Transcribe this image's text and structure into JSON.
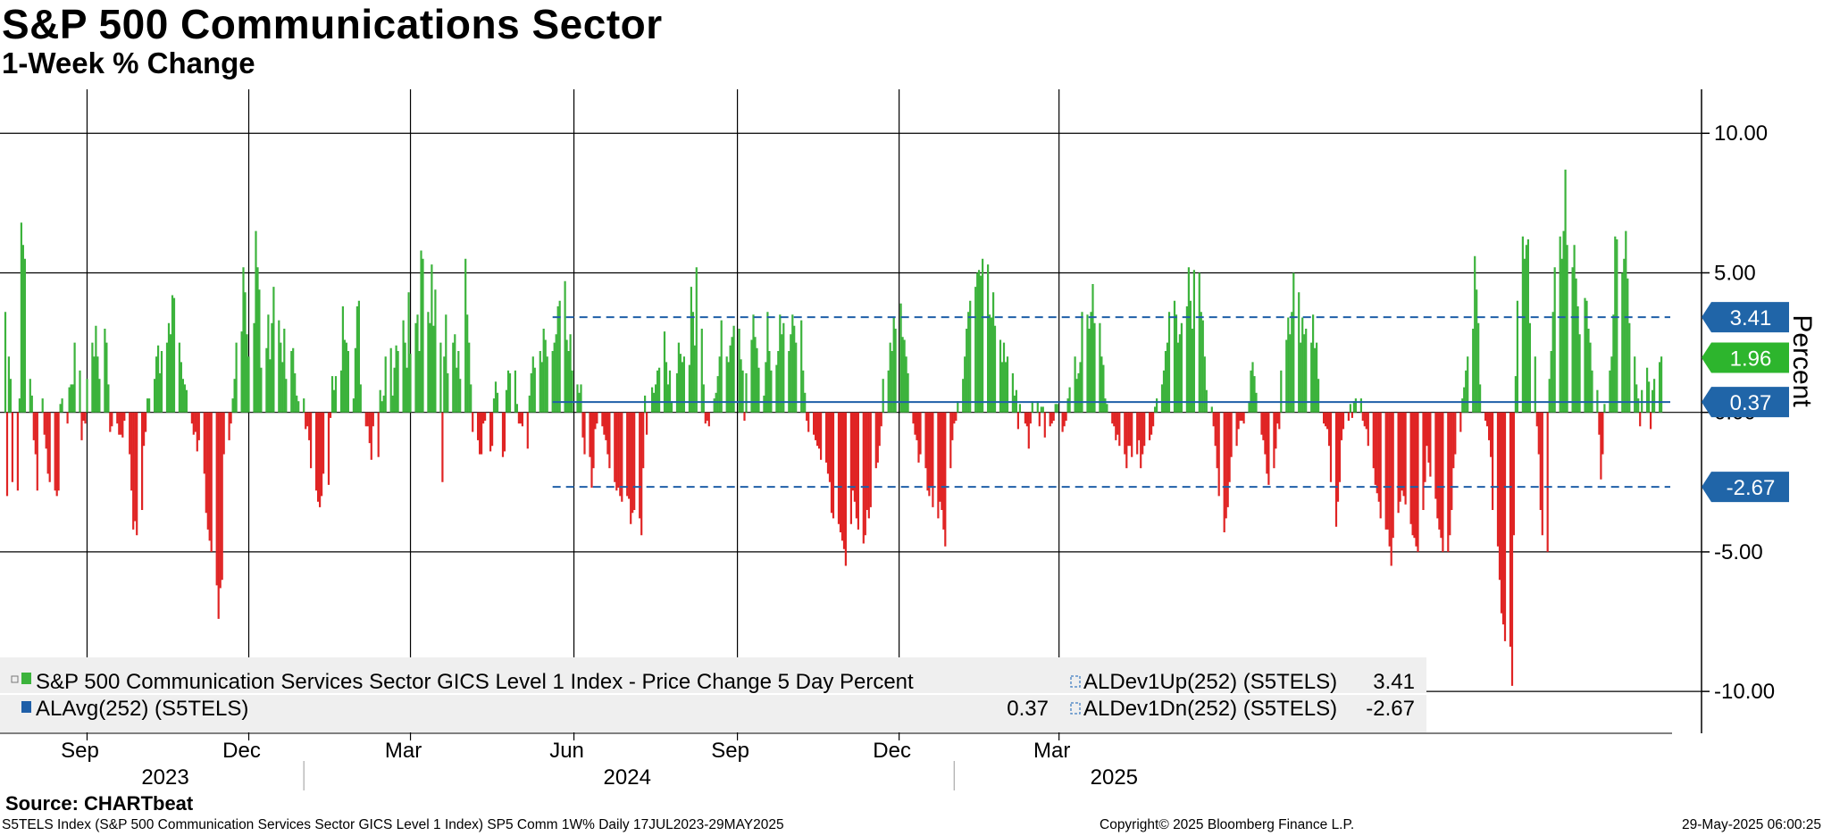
{
  "header": {
    "title": "S&P 500 Communications Sector",
    "subtitle": "1-Week % Change"
  },
  "footer": {
    "source": "Source: CHARTbeat",
    "left": "S5TELS Index (S&P 500 Communication Services Sector GICS Level 1 Index) SP5 Comm 1W%  Daily 17JUL2023-29MAY2025",
    "center": "Copyright© 2025 Bloomberg Finance L.P.",
    "right": "29-May-2025 06:00:25"
  },
  "colors": {
    "positive": "#3cb33c",
    "negative": "#e02424",
    "avg_line": "#1f5fa8",
    "band_line": "#1f5fa8",
    "badge_bg": "#2065a8",
    "badge_last": "#2db52d",
    "legend_bg": "#efefef",
    "grid": "#000000"
  },
  "chart_data": {
    "type": "bar",
    "title": "S&P 500 Communications Sector",
    "subtitle": "1-Week % Change",
    "ylabel": "Percent",
    "ylim": [
      -11.5,
      11
    ],
    "yticks": [
      10,
      5,
      0,
      -5,
      -10
    ],
    "ytick_labels": [
      "10.00",
      "5.00",
      "0.00",
      "-5.00",
      "-10.00"
    ],
    "x_range": [
      "2023-07-17",
      "2025-05-29"
    ],
    "month_ticks": [
      {
        "date": "2023-09-01",
        "label": "Sep"
      },
      {
        "date": "2023-12-01",
        "label": "Dec"
      },
      {
        "date": "2024-03-01",
        "label": "Mar"
      },
      {
        "date": "2024-06-01",
        "label": "Jun"
      },
      {
        "date": "2024-09-01",
        "label": "Sep"
      },
      {
        "date": "2024-12-01",
        "label": "Dec"
      },
      {
        "date": "2025-03-01",
        "label": "Mar"
      }
    ],
    "year_labels": [
      {
        "date": "2023-10-15",
        "label": "2023"
      },
      {
        "date": "2024-07-01",
        "label": "2024"
      },
      {
        "date": "2025-04-01",
        "label": "2025"
      }
    ],
    "year_separators": [
      "2024-01-01",
      "2025-01-01"
    ],
    "series": [
      {
        "name": "S&P 500 Communication Services Sector GICS Level 1 Index - Price Change 5 Day Percent",
        "start_date": "2023-07-17",
        "frequency": "business-day",
        "values": [
          3.6,
          -3.0,
          2.0,
          1.2,
          -2.5,
          -2.8,
          0.5,
          6.8,
          6.0,
          5.5,
          1.2,
          0.6,
          -1.0,
          -1.5,
          -2.8,
          0.5,
          -0.8,
          -1.3,
          -2.2,
          -2.5,
          -2.8,
          -3.0,
          -2.8,
          0.3,
          0.5,
          -0.4,
          0.9,
          1.0,
          1.0,
          2.5,
          1.5,
          -1.0,
          -0.3,
          -0.4,
          1.2,
          2.5,
          2.0,
          3.1,
          2.0,
          1.2,
          3.0,
          2.5,
          1.0,
          -0.7,
          -0.5,
          -0.4,
          -0.8,
          -0.8,
          -0.9,
          -0.3,
          -1.5,
          -2.8,
          -4.2,
          -3.9,
          -4.4,
          -3.5,
          -1.2,
          -0.7,
          0.5,
          0.5,
          1.2,
          2.0,
          2.4,
          1.4,
          2.2,
          2.5,
          3.2,
          2.8,
          4.2,
          4.1,
          2.5,
          1.8,
          1.2,
          1.0,
          0.8,
          -0.4,
          -0.8,
          -0.7,
          -1.4,
          -1.0,
          -2.2,
          -3.6,
          -4.2,
          -4.6,
          -5.0,
          -6.2,
          -7.4,
          -6.3,
          -6.0,
          -1.5,
          -1.0,
          -0.4,
          0.5,
          1.2,
          2.5,
          2.9,
          5.2,
          4.3,
          2.8,
          2.0,
          3.2,
          6.5,
          5.2,
          4.4,
          1.6,
          2.3,
          3.5,
          1.9,
          3.2,
          4.5,
          3.3,
          2.5,
          1.8,
          3.0,
          1.2,
          2.2,
          2.3,
          1.4,
          0.6,
          0.4,
          0.5,
          -0.6,
          -0.5,
          -1.0,
          -2.0,
          -2.8,
          -3.2,
          -3.4,
          -3.0,
          -2.2,
          -2.6,
          -0.2,
          1.3,
          0.8,
          1.3,
          1.5,
          3.8,
          2.6,
          2.5,
          2.2,
          0.5,
          2.3,
          3.8,
          4.0,
          1.0,
          -0.5,
          -0.5,
          -1.1,
          -1.7,
          -0.5,
          -1.6,
          0.8,
          0.4,
          0.6,
          2.0,
          2.3,
          0.6,
          1.6,
          2.4,
          2.2,
          3.3,
          2.5,
          1.6,
          4.3,
          2.1,
          3.2,
          3.5,
          2.2,
          5.8,
          5.5,
          3.6,
          3.2,
          5.3,
          3.1,
          4.4,
          2.5,
          -2.5,
          2.0,
          3.5,
          1.4,
          2.5,
          2.8,
          1.6,
          2.2,
          1.2,
          5.5,
          3.5,
          2.5,
          1.0,
          -0.7,
          -1.0,
          -1.5,
          -1.5,
          -0.4,
          -0.3,
          -1.4,
          -1.2,
          0.5,
          1.1,
          0.7,
          -1.6,
          -1.4,
          0.8,
          1.5,
          1.4,
          1.5,
          0.3,
          -0.4,
          -0.4,
          -0.5,
          -1.3,
          0.6,
          1.4,
          2.0,
          1.6,
          2.2,
          1.8,
          3.0,
          2.6,
          2.0,
          2.2,
          2.5,
          2.8,
          3.8,
          4.0,
          4.7,
          2.6,
          2.2,
          2.8,
          1.5,
          1.0,
          0.7,
          1.0,
          -0.9,
          -1.5,
          -1.6,
          -2.7,
          -2.0,
          -0.6,
          -0.4,
          -0.5,
          -0.8,
          -1.0,
          -1.5,
          -2.0,
          -2.5,
          -2.8,
          -2.7,
          -3.0,
          -3.2,
          -3.0,
          -3.1,
          -4.0,
          -3.6,
          -3.5,
          -3.8,
          -4.4,
          -2.0,
          0.6,
          -0.8,
          0.9,
          0.7,
          1.0,
          1.5,
          1.6,
          2.9,
          1.8,
          1.0,
          1.5,
          0.4,
          1.4,
          2.5,
          2.1,
          1.8,
          2.0,
          1.7,
          4.5,
          3.6,
          2.4,
          5.2,
          3.0,
          1.0,
          -0.4,
          -0.3,
          -0.5,
          0.5,
          0.7,
          1.3,
          2.0,
          3.3,
          2.0,
          1.8,
          2.4,
          2.7,
          3.1,
          3.0,
          1.9,
          1.5,
          -0.3,
          1.4,
          2.6,
          3.5,
          2.7,
          2.3,
          1.6,
          0.6,
          1.8,
          3.6,
          2.2,
          1.5,
          1.7,
          2.2,
          3.5,
          2.8,
          3.2,
          2.2,
          2.8,
          3.5,
          3.1,
          2.5,
          3.3,
          1.5,
          0.7,
          -0.3,
          -0.7,
          -0.8,
          -1.0,
          -1.2,
          -1.3,
          -1.7,
          -1.8,
          -2.2,
          -2.5,
          -3.6,
          -3.8,
          -4.0,
          -4.3,
          -4.6,
          -4.9,
          -5.5,
          -4.0,
          -2.8,
          -3.2,
          -3.8,
          -4.2,
          -4.7,
          -4.4,
          -3.5,
          -3.8,
          -3.4,
          -2.0,
          -1.8,
          -1.2,
          -0.5,
          1.2,
          1.5,
          2.5,
          2.2,
          3.4,
          3.0,
          3.9,
          2.7,
          2.6,
          2.0,
          1.4,
          -0.4,
          -0.8,
          -1.0,
          -1.8,
          -1.5,
          -2.0,
          -2.8,
          -3.0,
          -2.7,
          -3.4,
          -3.8,
          -3.2,
          -3.5,
          -4.2,
          -4.8,
          -2.0,
          -1.0,
          -0.4,
          -0.3,
          0.4,
          1.2,
          2.0,
          3.0,
          3.6,
          4.0,
          4.5,
          5.0,
          5.1,
          4.9,
          5.5,
          5.3,
          3.5,
          3.4,
          4.3,
          3.1,
          2.6,
          1.8,
          2.5,
          1.8,
          2.0,
          1.4,
          0.6,
          0.8,
          -0.6,
          0.3,
          -0.4,
          -0.5,
          -1.3,
          -0.4,
          0.4,
          0.4,
          -0.5,
          0.2,
          0.2,
          -0.9,
          -0.5,
          -0.4,
          -0.3,
          0.3,
          0.3,
          -0.7,
          -0.5,
          -0.3,
          0.5,
          0.9,
          2.0,
          1.2,
          1.4,
          1.8,
          3.6,
          3.5,
          3.0,
          3.6,
          4.6,
          3.2,
          3.2,
          2.0,
          1.7,
          0.5,
          0.3,
          -0.4,
          -0.5,
          -1.0,
          -0.8,
          -1.2,
          -1.5,
          -2.0,
          -1.2,
          -1.2,
          -1.6,
          -1.5,
          -1.0,
          -2.0,
          -1.5,
          -1.2,
          -1.0,
          -0.8,
          -0.5,
          0.2,
          0.5,
          1.0,
          1.5,
          2.2,
          2.5,
          3.6,
          4.0,
          3.5,
          2.5,
          2.8,
          3.2,
          3.8,
          5.2,
          4.0,
          3.0,
          5.1,
          5.0,
          3.6,
          3.3,
          2.0,
          0.8,
          0.2,
          -0.5,
          -1.2,
          -2.0,
          -3.0,
          -4.3,
          -3.8,
          -3.4,
          -2.5,
          -1.6,
          -1.2,
          -0.6,
          -0.3,
          -0.3,
          -0.4,
          0.4,
          1.5,
          1.8,
          1.3,
          0.7,
          -0.8,
          -1.0,
          -1.5,
          -2.2,
          -2.6,
          -2.0,
          -1.3,
          -0.4,
          -0.6,
          1.5,
          2.6,
          3.4,
          2.8,
          3.6,
          5.0,
          4.3,
          2.5,
          3.4,
          2.8,
          3.0,
          2.5,
          3.5,
          2.3,
          2.5,
          1.2,
          -0.4,
          -0.5,
          -0.6,
          -1.2,
          -2.5,
          -4.1,
          -3.2,
          -2.5,
          -1.0,
          -0.6,
          -0.3,
          0.3,
          -0.2,
          0.4,
          0.5,
          0.5,
          -0.3,
          -0.5,
          -0.6,
          -1.2,
          -2.0,
          -2.6,
          -2.9,
          -3.2,
          -3.8,
          -4.2,
          -4.2,
          -4.8,
          -5.5,
          -4.5,
          -3.6,
          -3.2,
          -2.8,
          -3.0,
          -3.3,
          -4.0,
          -4.4,
          -4.5,
          -4.8,
          -5.0,
          -3.5,
          -2.5,
          -1.2,
          -1.8,
          -2.3,
          -3.1,
          -3.8,
          -4.2,
          -4.5,
          -5.0,
          -5.0,
          -4.4,
          -3.5,
          -2.0,
          -1.5,
          -0.7,
          0.5,
          0.9,
          1.5,
          2.0,
          3.0,
          5.6,
          4.4,
          3.2,
          1.0,
          -0.3,
          -0.5,
          -1.0,
          -1.6,
          -3.5,
          -4.8,
          -6.0,
          -7.2,
          -7.6,
          -8.2,
          -8.4,
          -9.8,
          -4.4,
          1.3,
          4.0,
          6.3,
          5.5,
          6.0,
          6.2,
          3.2,
          2.0,
          -0.5,
          -1.5,
          -3.5,
          -4.4,
          -5.0,
          1.2,
          2.2,
          3.6,
          5.2,
          6.3,
          5.5,
          6.5,
          8.7,
          6.0,
          5.2,
          6.0,
          4.8,
          3.8,
          2.8,
          4.1,
          4.0,
          3.0,
          2.5,
          1.5,
          0.8,
          -0.8,
          -2.4,
          -1.5,
          0.3,
          1.5,
          2.0,
          3.5,
          6.3,
          6.2,
          5.0,
          5.5,
          6.5,
          4.8,
          3.2,
          2.0,
          1.0,
          0.5,
          -0.5,
          0.8,
          1.6,
          1.1,
          -0.6,
          0.8,
          1.2,
          1.8,
          2.0
        ]
      }
    ],
    "overlays": [
      {
        "name": "ALDev1Up(252) (S5TELS)",
        "value": 3.41,
        "label": "3.41",
        "style": "dashed",
        "start_date": "2024-05-20"
      },
      {
        "name": "ALAvg(252) (S5TELS)",
        "value": 0.37,
        "label": "0.37",
        "style": "solid",
        "start_date": "2024-05-20"
      },
      {
        "name": "ALDev1Dn(252) (S5TELS)",
        "value": -2.67,
        "label": "-2.67",
        "style": "dashed",
        "start_date": "2024-05-20"
      }
    ],
    "last_value": {
      "value": 1.96,
      "label": "1.96"
    }
  },
  "legend": {
    "row1_left": "S&P 500 Communication Services Sector GICS Level 1 Index - Price Change 5 Day Percent",
    "row2_left": "ALAvg(252) (S5TELS)",
    "row2_value": "0.37",
    "row1_right": "ALDev1Up(252) (S5TELS)",
    "row1_right_value": "3.41",
    "row2_right": "ALDev1Dn(252) (S5TELS)",
    "row2_right_value": "-2.67"
  }
}
